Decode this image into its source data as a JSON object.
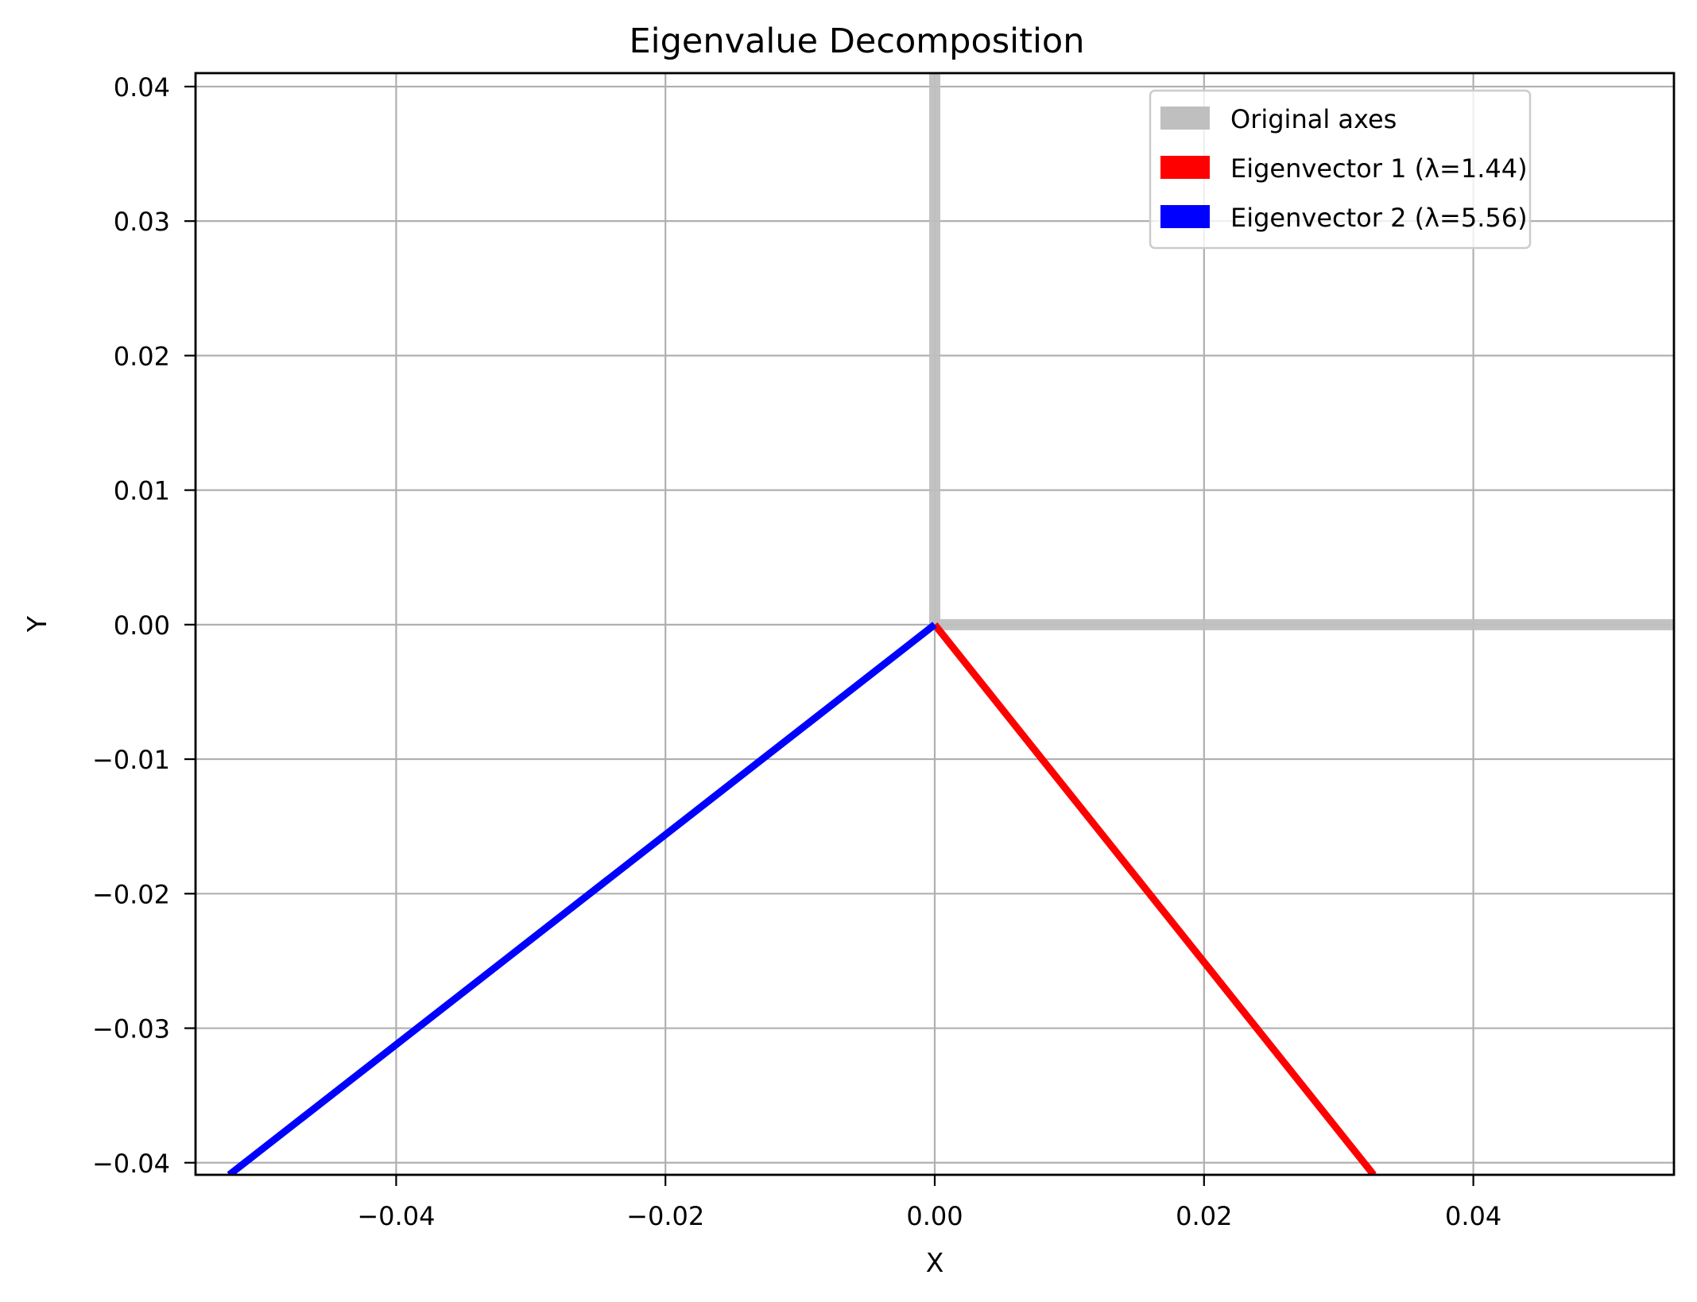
{
  "chart_data": {
    "type": "line",
    "title": "Eigenvalue Decomposition",
    "xlabel": "X",
    "ylabel": "Y",
    "xlim": [
      -0.0549,
      0.0549
    ],
    "ylim": [
      -0.0409,
      0.041
    ],
    "grid": true,
    "aspect": "equal",
    "legend_position": "upper right",
    "x_ticks": [
      -0.04,
      -0.02,
      0.0,
      0.02,
      0.04
    ],
    "x_tick_labels": [
      "−0.04",
      "−0.02",
      "0.00",
      "0.02",
      "0.04"
    ],
    "y_ticks": [
      0.04,
      0.03,
      0.02,
      0.01,
      0.0,
      -0.01,
      -0.02,
      -0.03,
      -0.04
    ],
    "y_tick_labels": [
      "0.04",
      "0.03",
      "0.02",
      "0.01",
      "0.00",
      "−0.01",
      "−0.02",
      "−0.03",
      "−0.04"
    ],
    "series": [
      {
        "name": "Original axes",
        "color": "#bfbfbf",
        "opacity": 0.95,
        "width": 14,
        "segments": [
          {
            "x": [
              0,
              0.0549
            ],
            "y": [
              0,
              0
            ]
          },
          {
            "x": [
              0,
              0
            ],
            "y": [
              0,
              0.041
            ]
          }
        ]
      },
      {
        "name": "Eigenvector 1 (λ=1.44)",
        "color": "#ff0000",
        "opacity": 1,
        "width": 9,
        "eigenvalue": 1.44,
        "direction": [
          0.62,
          -0.78
        ],
        "segments": [
          {
            "x": [
              0,
              0.0326
            ],
            "y": [
              0,
              -0.0409
            ]
          }
        ]
      },
      {
        "name": "Eigenvector 2 (λ=5.56)",
        "color": "#0000ff",
        "opacity": 1,
        "width": 9,
        "eigenvalue": 5.56,
        "direction": [
          -0.79,
          -0.62
        ],
        "segments": [
          {
            "x": [
              0,
              -0.0524
            ],
            "y": [
              0,
              -0.0409
            ]
          }
        ]
      }
    ]
  },
  "legend": {
    "items": [
      {
        "label": "Original axes",
        "color": "#bfbfbf"
      },
      {
        "label": "Eigenvector 1 (λ=1.44)",
        "color": "#ff0000"
      },
      {
        "label": "Eigenvector 2 (λ=5.56)",
        "color": "#0000ff"
      }
    ]
  },
  "colors": {
    "grid": "#b0b0b0",
    "axes": "#000000",
    "background": "#ffffff"
  }
}
